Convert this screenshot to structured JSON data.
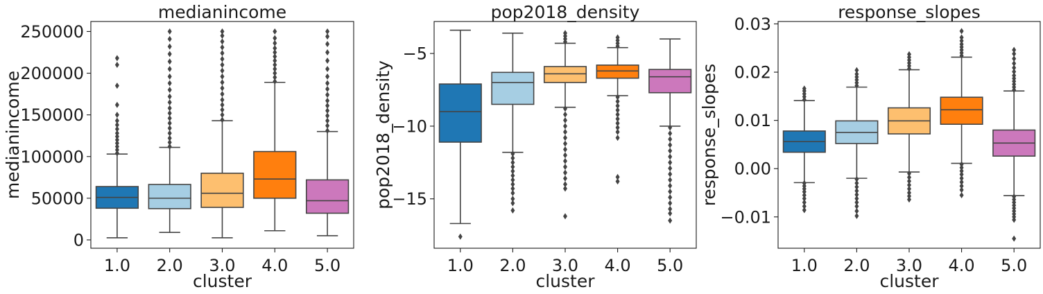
{
  "chart_data": [
    {
      "type": "box",
      "title": "medianincome",
      "xlabel": "cluster",
      "ylabel": "medianincome",
      "categories": [
        "1.0",
        "2.0",
        "3.0",
        "4.0",
        "5.0"
      ],
      "colors": [
        "#1f77b4",
        "#a6cee3",
        "#fdbf6f",
        "#ff7f0e",
        "#cc78bc"
      ],
      "ylim": [
        -10000,
        262000
      ],
      "yticks": [
        0,
        50000,
        100000,
        150000,
        200000,
        250000
      ],
      "ytick_labels": [
        "0",
        "50000",
        "100000",
        "150000",
        "200000",
        "250000"
      ],
      "boxes": [
        {
          "whislo": 2500,
          "q1": 38000,
          "med": 51000,
          "q3": 64000,
          "whishi": 103000,
          "fliers_lo": [],
          "fliers_hi": [
            104000,
            108000,
            112000,
            116000,
            120000,
            124000,
            128000,
            133000,
            138000,
            143000,
            150000,
            162000,
            185000,
            210000,
            218000
          ]
        },
        {
          "whislo": 9000,
          "q1": 37500,
          "med": 50000,
          "q3": 66500,
          "whishi": 111000,
          "fliers_lo": [],
          "fliers_hi": [
            112000,
            117000,
            122000,
            128000,
            134000,
            140000,
            146000,
            152000,
            158000,
            165000,
            172000,
            180000,
            188000,
            196000,
            205000,
            214000,
            223000,
            232000,
            241000,
            250000
          ]
        },
        {
          "whislo": 2500,
          "q1": 39000,
          "med": 56000,
          "q3": 80000,
          "whishi": 143000,
          "fliers_lo": [],
          "fliers_hi": [
            144000,
            150000,
            156000,
            162000,
            168000,
            175000,
            182000,
            189000,
            196000,
            203000,
            210000,
            217000,
            224000,
            231000,
            238000,
            245000,
            250000
          ]
        },
        {
          "whislo": 11000,
          "q1": 50000,
          "med": 73000,
          "q3": 106000,
          "whishi": 189000,
          "fliers_lo": [],
          "fliers_hi": [
            190000,
            195000,
            200000,
            205000,
            210000,
            215000,
            220000,
            225000,
            230000,
            236000,
            242000,
            250000
          ]
        },
        {
          "whislo": 5000,
          "q1": 32000,
          "med": 47000,
          "q3": 72000,
          "whishi": 130000,
          "fliers_lo": [],
          "fliers_hi": [
            131000,
            137000,
            143000,
            149000,
            155000,
            161000,
            167000,
            174000,
            181000,
            188000,
            196000,
            205000,
            215000,
            225000,
            235000,
            244000,
            250000
          ]
        }
      ]
    },
    {
      "type": "box",
      "title": "pop2018_density",
      "xlabel": "cluster",
      "ylabel": "pop2018_density",
      "categories": [
        "1.0",
        "2.0",
        "3.0",
        "4.0",
        "5.0"
      ],
      "colors": [
        "#1f77b4",
        "#a6cee3",
        "#fdbf6f",
        "#ff7f0e",
        "#cc78bc"
      ],
      "ylim": [
        -18.4,
        -2.8
      ],
      "yticks": [
        -15,
        -10,
        -5
      ],
      "ytick_labels": [
        "−15",
        "−10",
        "−5"
      ],
      "boxes": [
        {
          "whislo": -16.7,
          "q1": -11.1,
          "med": -9.0,
          "q3": -7.1,
          "whishi": -3.4,
          "fliers_lo": [
            -17.6
          ],
          "fliers_hi": []
        },
        {
          "whislo": -11.8,
          "q1": -8.5,
          "med": -7.0,
          "q3": -6.3,
          "whishi": -3.6,
          "fliers_lo": [
            -11.9,
            -12.2,
            -12.5,
            -12.8,
            -13.1,
            -13.4,
            -13.7,
            -14.0,
            -14.3,
            -14.6,
            -15.0,
            -15.3,
            -15.8
          ],
          "fliers_hi": []
        },
        {
          "whislo": -8.7,
          "q1": -7.0,
          "med": -6.4,
          "q3": -5.9,
          "whishi": -4.3,
          "fliers_lo": [
            -8.8,
            -9.2,
            -9.6,
            -10.0,
            -10.4,
            -10.8,
            -11.2,
            -11.6,
            -12.0,
            -12.4,
            -12.8,
            -13.2,
            -13.6,
            -14.0,
            -14.3,
            -16.2
          ],
          "fliers_hi": [
            -4.2,
            -4.0,
            -3.8,
            -3.6
          ]
        },
        {
          "whislo": -7.9,
          "q1": -6.7,
          "med": -6.2,
          "q3": -5.8,
          "whishi": -4.6,
          "fliers_lo": [
            -8.0,
            -8.3,
            -8.6,
            -8.9,
            -9.2,
            -9.5,
            -9.8,
            -10.1,
            -10.4,
            -10.8,
            -13.5,
            -13.8
          ],
          "fliers_hi": [
            -4.5,
            -4.3,
            -4.1,
            -3.9
          ]
        },
        {
          "whislo": -10.0,
          "q1": -7.7,
          "med": -6.6,
          "q3": -6.1,
          "whishi": -4.0,
          "fliers_lo": [
            -10.1,
            -10.5,
            -10.9,
            -11.3,
            -11.7,
            -12.1,
            -12.5,
            -12.9,
            -13.3,
            -13.7,
            -14.1,
            -14.5,
            -14.9,
            -15.3,
            -15.7,
            -16.0,
            -16.5
          ],
          "fliers_hi": []
        }
      ]
    },
    {
      "type": "box",
      "title": "response_slopes",
      "xlabel": "cluster",
      "ylabel": "response_slopes",
      "categories": [
        "1.0",
        "2.0",
        "3.0",
        "4.0",
        "5.0"
      ],
      "colors": [
        "#1f77b4",
        "#a6cee3",
        "#fdbf6f",
        "#ff7f0e",
        "#cc78bc"
      ],
      "ylim": [
        -0.0165,
        0.0305
      ],
      "yticks": [
        -0.01,
        0.0,
        0.01,
        0.02,
        0.03
      ],
      "ytick_labels": [
        "−0.01",
        "0.00",
        "0.01",
        "0.02",
        "0.03"
      ],
      "boxes": [
        {
          "whislo": -0.0029,
          "q1": 0.0034,
          "med": 0.0056,
          "q3": 0.0078,
          "whishi": 0.0141,
          "fliers_lo": [
            -0.003,
            -0.0036,
            -0.0042,
            -0.0048,
            -0.0055,
            -0.0062,
            -0.007,
            -0.0078,
            -0.0086
          ],
          "fliers_hi": [
            0.0143,
            0.0149,
            0.0155,
            0.0161,
            0.0166
          ]
        },
        {
          "whislo": -0.002,
          "q1": 0.0052,
          "med": 0.0075,
          "q3": 0.0099,
          "whishi": 0.0169,
          "fliers_lo": [
            -0.0022,
            -0.003,
            -0.0038,
            -0.0046,
            -0.0054,
            -0.0062,
            -0.007,
            -0.0078,
            -0.0088,
            -0.0098
          ],
          "fliers_hi": [
            0.0172,
            0.0178,
            0.0184,
            0.019,
            0.0196,
            0.0204
          ]
        },
        {
          "whislo": -0.0007,
          "q1": 0.0072,
          "med": 0.0099,
          "q3": 0.0126,
          "whishi": 0.0205,
          "fliers_lo": [
            -0.001,
            -0.0018,
            -0.0026,
            -0.0034,
            -0.0042,
            -0.005,
            -0.0057,
            -0.0064
          ],
          "fliers_hi": [
            0.0207,
            0.0213,
            0.0219,
            0.0225,
            0.0231,
            0.0237
          ]
        },
        {
          "whislo": 0.0011,
          "q1": 0.0092,
          "med": 0.0122,
          "q3": 0.0148,
          "whishi": 0.0231,
          "fliers_lo": [
            0.0009,
            0.0002,
            -0.0005,
            -0.0012,
            -0.002,
            -0.0028,
            -0.0036,
            -0.0044,
            -0.0055
          ],
          "fliers_hi": [
            0.0234,
            0.024,
            0.0246,
            0.0252,
            0.0258,
            0.0265,
            0.0272,
            0.0285
          ]
        },
        {
          "whislo": -0.0056,
          "q1": 0.0026,
          "med": 0.0053,
          "q3": 0.008,
          "whishi": 0.0161,
          "fliers_lo": [
            -0.0058,
            -0.0064,
            -0.007,
            -0.0076,
            -0.0082,
            -0.0088,
            -0.0094,
            -0.01,
            -0.0106,
            -0.0145
          ],
          "fliers_hi": [
            0.0163,
            0.0169,
            0.0175,
            0.0181,
            0.0187,
            0.0193,
            0.0201,
            0.0209,
            0.0218,
            0.0228,
            0.0238,
            0.0246
          ]
        }
      ]
    }
  ]
}
